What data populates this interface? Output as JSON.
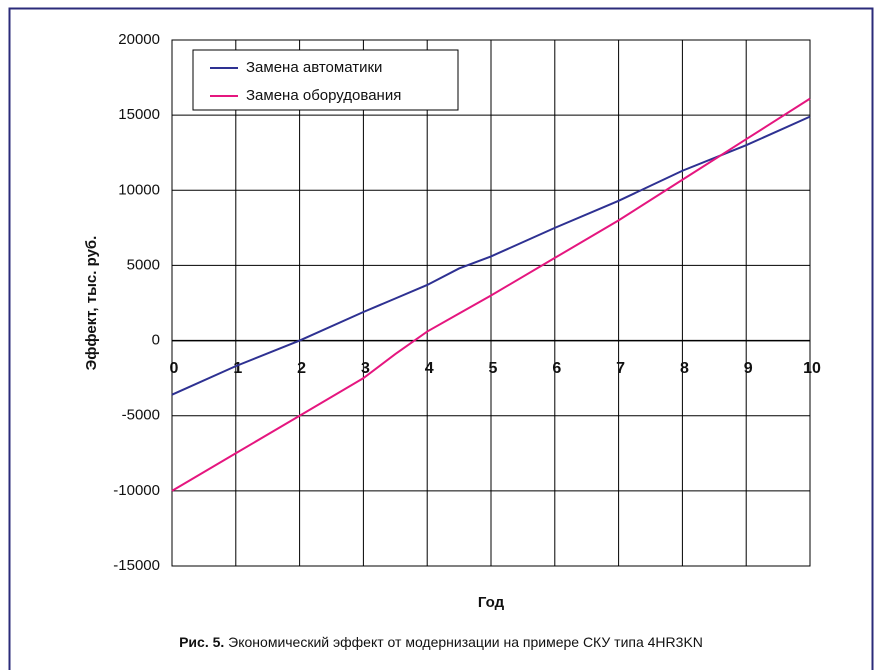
{
  "chart_data": {
    "type": "line",
    "x": [
      0,
      1,
      2,
      3,
      3.5,
      4,
      4.5,
      5,
      6,
      7,
      8,
      9,
      10
    ],
    "series": [
      {
        "name": "Замена автоматики",
        "color": "#2e3192",
        "values": [
          -3600,
          -1700,
          0,
          1900,
          2800,
          3700,
          4800,
          5600,
          7500,
          9300,
          11300,
          13000,
          14900
        ]
      },
      {
        "name": "Замена оборудования",
        "color": "#e5167f",
        "values": [
          -10000,
          -7500,
          -5000,
          -2500,
          -900,
          600,
          1800,
          3000,
          5500,
          8000,
          10700,
          13400,
          16100
        ]
      }
    ],
    "xlim": [
      0,
      10
    ],
    "xticks": [
      0,
      1,
      2,
      3,
      4,
      5,
      6,
      7,
      8,
      9,
      10
    ],
    "ylim": [
      -15000,
      20000
    ],
    "yticks": [
      -15000,
      -10000,
      -5000,
      0,
      5000,
      10000,
      15000,
      20000
    ],
    "grid": true,
    "legend": "upper left",
    "xlabel": "Год",
    "ylabel": "Эффект, тыс. руб.",
    "caption_label": "Рис. 5.",
    "caption_text": "Экономический эффект от модернизации на примере СКУ типа 4HR3KN"
  }
}
